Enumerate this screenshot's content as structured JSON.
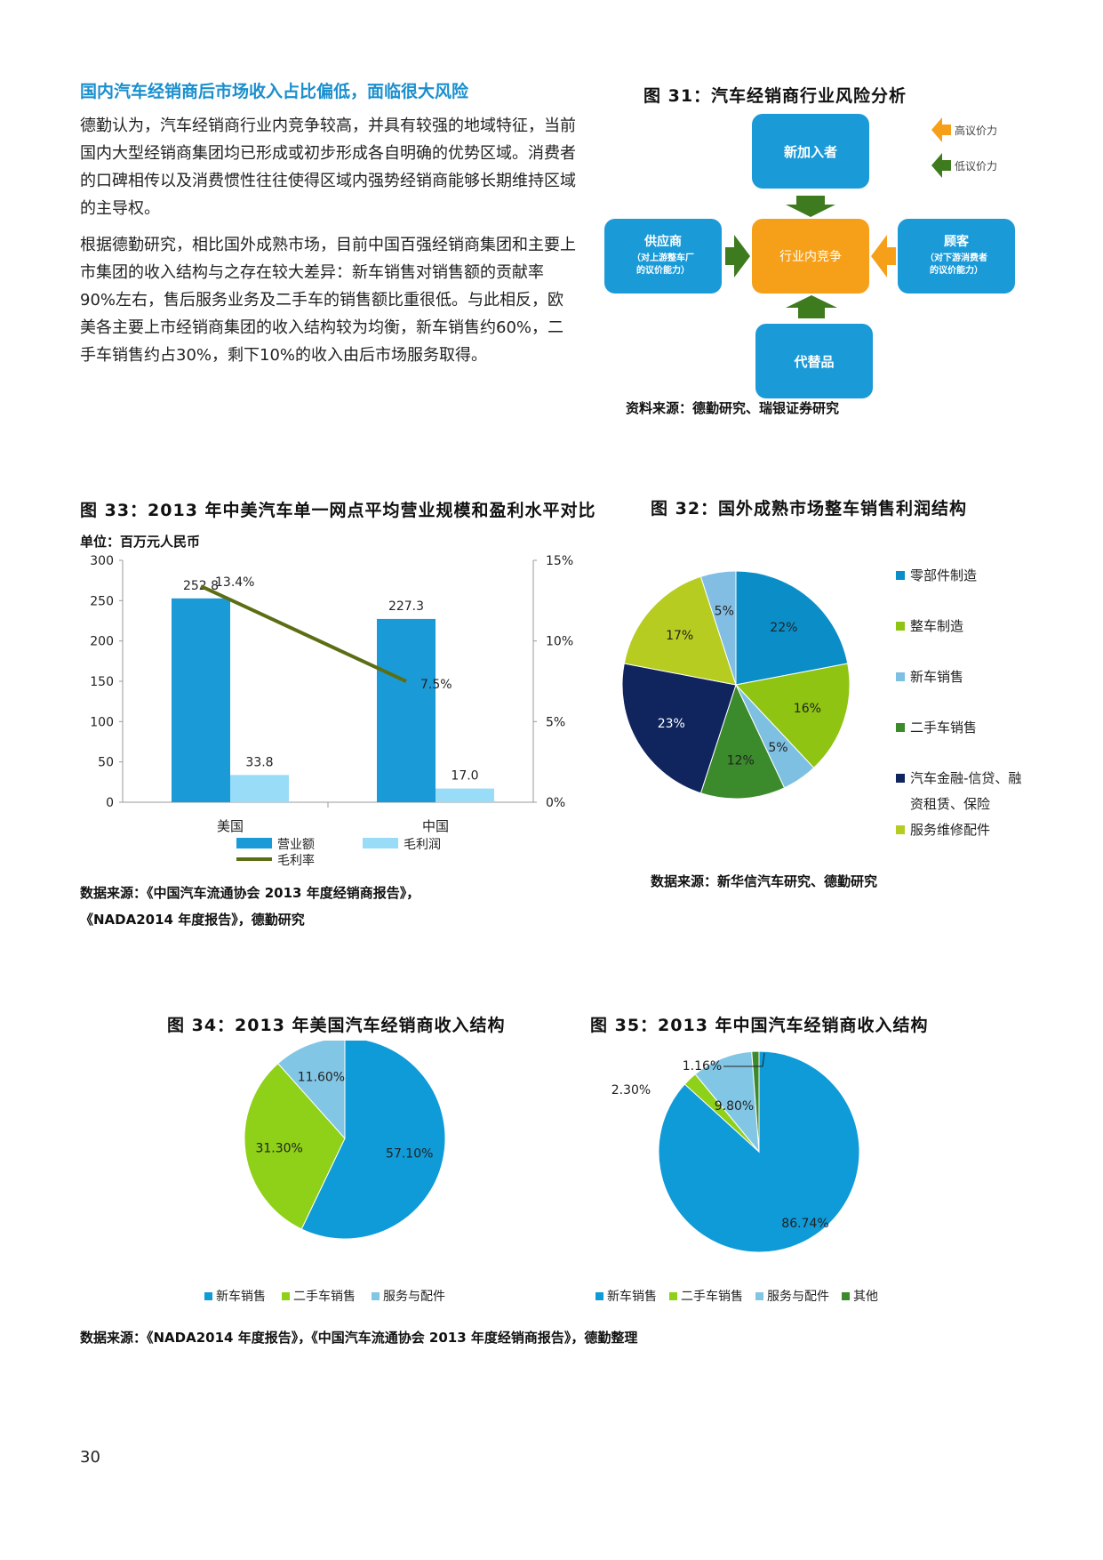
{
  "left_text": {
    "heading": "国内汽车经销商后市场收入占比偏低，面临很大风险",
    "paragraphs": [
      "德勤认为，汽车经销商行业内竞争较高，并具有较强的地域特征，当前国内大型经销商集团均已形成或初步形成各自明确的优势区域。消费者的口碑相传以及消费惯性往往使得区域内强势经销商能够长期维持区域的主导权。",
      "根据德勤研究，相比国外成熟市场，目前中国百强经销商集团和主要上市集团的收入结构与之存在较大差异：新车销售对销售额的贡献率90%左右，售后服务业务及二手车的销售额比重很低。与此相反，欧美各主要上市经销商集团的收入结构较为均衡，新车销售约60%，二手车销售约占30%，剩下10%的收入由后市场服务取得。"
    ]
  },
  "fig31": {
    "title": "图 31：汽车经销商行业风险分析",
    "top": "新加入者",
    "left": {
      "line1": "供应商",
      "line2": "（对上游整车厂",
      "line3": "的议价能力）"
    },
    "center": "行业内竞争",
    "right": {
      "line1": "顾客",
      "line2": "（对下游消费者",
      "line3": "的议价能力）"
    },
    "bottom": "代替品",
    "legend_high": "高议价力",
    "legend_low": "低议价力",
    "source": "资料来源：德勤研究、瑞银证券研究",
    "colors": {
      "box": "#1b9ad8",
      "center": "#f6a01a",
      "arrow_green": "#3e7a1e",
      "arrow_orange": "#f6a01a"
    }
  },
  "fig33": {
    "title": "图 33：2013 年中美汽车单一网点平均营业规模和盈利水平对比",
    "unit": "单位：百万元人民币",
    "source_line1": "数据来源：《中国汽车流通协会 2013 年度经销商报告》，",
    "source_line2": "《NADA2014 年度报告》，德勤研究"
  },
  "fig32": {
    "title": "图 32：国外成熟市场整车销售利润结构",
    "source": "数据来源：新华信汽车研究、德勤研究"
  },
  "fig34": {
    "title": "图 34：2013 年美国汽车经销商收入结构"
  },
  "fig35": {
    "title": "图 35：2013 年中国汽车经销商收入结构"
  },
  "bottom_source": "数据来源：《NADA2014 年度报告》，《中国汽车流通协会 2013 年度经销商报告》，德勤整理",
  "page_number": "30",
  "chart_data": [
    {
      "id": "fig33",
      "type": "bar",
      "categories": [
        "美国",
        "中国"
      ],
      "series": [
        {
          "name": "营业额",
          "values": [
            252.8,
            227.3
          ],
          "color": "#1b9ad8",
          "labels": [
            "252.8",
            "227.3"
          ]
        },
        {
          "name": "毛利润",
          "values": [
            33.8,
            17.0
          ],
          "color": "#99dcf8",
          "labels": [
            "33.8",
            "17.0"
          ]
        },
        {
          "name": "毛利率",
          "type": "line",
          "axis": "right",
          "values": [
            13.4,
            7.5
          ],
          "color": "#5b6e14",
          "labels": [
            "13.4%",
            "7.5%"
          ]
        }
      ],
      "ylim": [
        0,
        300
      ],
      "yticks": [
        "0",
        "50",
        "100",
        "150",
        "200",
        "250",
        "300"
      ],
      "y2lim": [
        0,
        15
      ],
      "y2ticks": [
        "0%",
        "5%",
        "10%",
        "15%"
      ],
      "legend": "bottom"
    },
    {
      "id": "fig32",
      "type": "pie",
      "legend": "right",
      "slices": [
        {
          "name": "零部件制造",
          "value": 22,
          "label": "22%",
          "color": "#0b8ec8"
        },
        {
          "name": "整车制造",
          "value": 16,
          "label": "16%",
          "color": "#8fc412"
        },
        {
          "name": "新车销售",
          "value": 5,
          "label": "5%",
          "color": "#7ec0e2"
        },
        {
          "name": "二手车销售",
          "value": 12,
          "label": "12%",
          "color": "#3b8a2c"
        },
        {
          "name": "汽车金融-信贷、融资租赁、保险",
          "legend1": "汽车金融-信贷、融",
          "legend2": "资租赁、保险",
          "value": 23,
          "label": "23%",
          "color": "#10255e"
        },
        {
          "name": "服务维修配件",
          "value": 17,
          "label": "17%",
          "color": "#b7cc20"
        },
        {
          "name": "",
          "value": 5,
          "label": "5%",
          "color": "#82bde3"
        }
      ]
    },
    {
      "id": "fig34",
      "type": "pie",
      "legend": "bottom",
      "slices": [
        {
          "name": "新车销售",
          "value": 57.1,
          "label": "57.10%",
          "color": "#0f9ad8"
        },
        {
          "name": "二手车销售",
          "value": 31.3,
          "label": "31.30%",
          "color": "#8fd018"
        },
        {
          "name": "服务与配件",
          "value": 11.6,
          "label": "11.60%",
          "color": "#82c6e6"
        }
      ]
    },
    {
      "id": "fig35",
      "type": "pie",
      "legend": "bottom",
      "slices": [
        {
          "name": "新车销售",
          "value": 86.74,
          "label": "86.74%",
          "color": "#0f9ad8"
        },
        {
          "name": "二手车销售",
          "value": 2.3,
          "label": "2.30%",
          "color": "#8fd018"
        },
        {
          "name": "服务与配件",
          "value": 9.8,
          "label": "9.80%",
          "color": "#82c6e6"
        },
        {
          "name": "其他",
          "value": 1.16,
          "label": "1.16%",
          "color": "#3b8a2c"
        }
      ]
    }
  ]
}
